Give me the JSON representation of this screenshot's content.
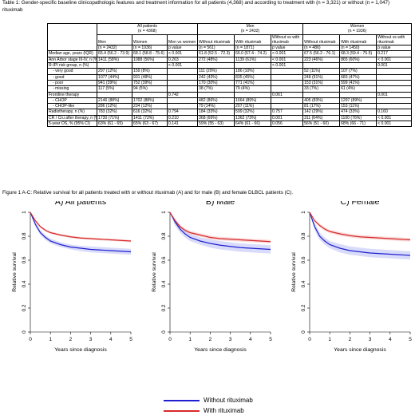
{
  "table_caption": "Table 1: Gender-specific baseline clinicopathologic features and treatment information for all patients (4,368) and according to treatment with (n = 3,321) or without (n = 1,047) rituximab",
  "table": {
    "group_headers": [
      "All patients",
      "Men",
      "Women"
    ],
    "group_counts": [
      "(n = 4368)",
      "(n = 2432)",
      "(n = 1936)"
    ],
    "subheaders": [
      "Men",
      "Women",
      "Men vs women",
      "Without rituximab",
      "With rituximab",
      "Without vs with rituximab",
      "Without rituximab",
      "With rituximab",
      "Without vs with rituximab"
    ],
    "counts": [
      "(n = 2432)",
      "(n = 1936)",
      "p value",
      "(n = 561)",
      "(n = 1871)",
      "p value",
      "(n = 486)",
      "(n = 1450)",
      "p value"
    ],
    "rows": [
      {
        "label": "Median age, years (IQR)",
        "indent": false,
        "cells": [
          "65.4 (56.2 - 73.9)",
          "68.1 (58.8 - 75.6)",
          "< 0.001",
          "61.8 (52.5 - 72.3)",
          "66.0 (57.4 - 74.2)",
          "< 0.001",
          "67.5 (56.2 - 76.1)",
          "68.3 (59.4 - 75.5)",
          "0.217"
        ]
      },
      {
        "label": "Ann Arbor stage III-IV, n (%)",
        "indent": false,
        "cells": [
          "1411 (58%)",
          "1088 (56%)",
          "0.263",
          "272 (48%)",
          "1139 (61%)",
          "< 0.001",
          "223 (46%)",
          "865 (60%)",
          "< 0.001"
        ]
      },
      {
        "label": "R-IPI risk group, n (%)",
        "indent": false,
        "cells": [
          "",
          "",
          "< 0.001",
          "",
          "",
          "< 0.001",
          "",
          "",
          "0.001"
        ]
      },
      {
        "label": "- very good",
        "indent": true,
        "cells": [
          "297 (12%)",
          "159 (8%)",
          "",
          "111 (20%)",
          "186 (10%)",
          "",
          "52 (11%)",
          "107 (7%)",
          ""
        ]
      },
      {
        "label": "- good",
        "indent": true,
        "cells": [
          "1077 (44%)",
          "931 (48%)",
          "",
          "242 (43%)",
          "835 (45%)",
          "",
          "248 (51%)",
          "683 (47%)",
          ""
        ]
      },
      {
        "label": "- poor",
        "indent": true,
        "cells": [
          "941 (39%)",
          "752 (39%)",
          "",
          "170 (30%)",
          "771 (41%)",
          "",
          "153 (31%)",
          "599 (41%)",
          ""
        ]
      },
      {
        "label": "- missing",
        "indent": true,
        "cells": [
          "117 (5%)",
          "94 (5%)",
          "",
          "38 (7%)",
          "79 (4%)",
          "",
          "33 (7%)",
          "61 (4%)",
          ""
        ]
      },
      {
        "label": "Frontline therapy",
        "indent": false,
        "cells": [
          "",
          "",
          "0.742",
          "",
          "",
          "0.061",
          "",
          "",
          "0.001"
        ]
      },
      {
        "label": "- CHOP",
        "indent": true,
        "cells": [
          "2146 (88%)",
          "1702 (88%)",
          "",
          "482 (86%)",
          "1664 (89%)",
          "",
          "405 (83%)",
          "1297 (89%)",
          ""
        ]
      },
      {
        "label": "- CHOP-like",
        "indent": true,
        "cells": [
          "286 (12%)",
          "234 (12%)",
          "",
          "79 (14%)",
          "207 (11%)",
          "",
          "81 (17%)",
          "153 (11%)",
          ""
        ]
      },
      {
        "label": "Radiotherapy, n (%)",
        "indent": false,
        "cells": [
          "783 (32%)",
          "616 (32%)",
          "0.794",
          "184 (33%)",
          "599 (32%)",
          "0.757",
          "142 (29%)",
          "474 (33%)",
          "0.160"
        ]
      },
      {
        "label": "CR / Cru after therapy, n (%)",
        "indent": false,
        "cells": [
          "1730 (71%)",
          "1411 (73%)",
          "0.210",
          "368 (66%)",
          "1362 (73%)",
          "0.001",
          "311 (64%)",
          "1100 (76%)",
          "< 0.001"
        ]
      },
      {
        "label": "5-year OS, % (95% CI)",
        "indent": false,
        "cells": [
          "63% (61 - 65)",
          "65% (63 - 67)",
          "0.141",
          "59% (55 - 63)",
          "64% (61 - 66)",
          "0.056",
          "56% (51 - 60)",
          "68% (66 - 71)",
          "< 0.001"
        ]
      }
    ]
  },
  "figure_caption": "Figure 1 A-C: Relative survival for all patients treated with or without rituximab (A) and for male (B) and female DLBCL patients (C).",
  "legend": {
    "without": {
      "label": "Without rituximab",
      "color": "#1f1fcf"
    },
    "with": {
      "label": "With rituximab",
      "color": "#d62a2a"
    }
  },
  "chart_data": [
    {
      "type": "line",
      "title": "A) All patients",
      "xlabel": "Years since diagnosis",
      "ylabel": "Relative survival",
      "xlim": [
        0,
        5
      ],
      "ylim": [
        0,
        1
      ],
      "xticks": [
        0,
        1,
        2,
        3,
        4,
        5
      ],
      "yticks": [
        0,
        0.2,
        0.4,
        0.6,
        0.8,
        1
      ],
      "x": [
        0,
        0.25,
        0.5,
        0.75,
        1,
        1.5,
        2,
        2.5,
        3,
        3.5,
        4,
        4.5,
        5
      ],
      "series": [
        {
          "name": "Without rituximab",
          "values": [
            1,
            0.9,
            0.83,
            0.79,
            0.76,
            0.73,
            0.71,
            0.7,
            0.69,
            0.685,
            0.68,
            0.675,
            0.67
          ],
          "lower": [
            1,
            0.88,
            0.81,
            0.77,
            0.74,
            0.71,
            0.69,
            0.675,
            0.665,
            0.66,
            0.655,
            0.65,
            0.645
          ],
          "upper": [
            1,
            0.92,
            0.85,
            0.81,
            0.78,
            0.75,
            0.73,
            0.72,
            0.715,
            0.71,
            0.705,
            0.7,
            0.695
          ]
        },
        {
          "name": "With rituximab",
          "values": [
            1,
            0.93,
            0.88,
            0.85,
            0.83,
            0.81,
            0.795,
            0.785,
            0.78,
            0.775,
            0.77,
            0.765,
            0.76
          ],
          "lower": [
            1,
            0.92,
            0.87,
            0.84,
            0.82,
            0.8,
            0.785,
            0.775,
            0.77,
            0.765,
            0.76,
            0.755,
            0.75
          ],
          "upper": [
            1,
            0.94,
            0.89,
            0.86,
            0.84,
            0.82,
            0.805,
            0.795,
            0.79,
            0.785,
            0.78,
            0.775,
            0.77
          ]
        }
      ]
    },
    {
      "type": "line",
      "title": "B) Male",
      "xlabel": "Years since diagnosis",
      "ylabel": "Relative survival",
      "xlim": [
        0,
        5
      ],
      "ylim": [
        0,
        1
      ],
      "xticks": [
        0,
        1,
        2,
        3,
        4,
        5
      ],
      "yticks": [
        0,
        0.2,
        0.4,
        0.6,
        0.8,
        1
      ],
      "x": [
        0,
        0.25,
        0.5,
        0.75,
        1,
        1.5,
        2,
        2.5,
        3,
        3.5,
        4,
        4.5,
        5
      ],
      "series": [
        {
          "name": "Without rituximab",
          "values": [
            1,
            0.92,
            0.86,
            0.82,
            0.79,
            0.76,
            0.74,
            0.725,
            0.715,
            0.705,
            0.7,
            0.695,
            0.69
          ],
          "lower": [
            1,
            0.89,
            0.83,
            0.79,
            0.76,
            0.73,
            0.705,
            0.69,
            0.68,
            0.67,
            0.665,
            0.66,
            0.655
          ],
          "upper": [
            1,
            0.95,
            0.89,
            0.85,
            0.82,
            0.79,
            0.775,
            0.76,
            0.75,
            0.74,
            0.735,
            0.73,
            0.725
          ]
        },
        {
          "name": "With rituximab",
          "values": [
            1,
            0.93,
            0.88,
            0.85,
            0.83,
            0.81,
            0.79,
            0.78,
            0.775,
            0.77,
            0.765,
            0.76,
            0.755
          ],
          "lower": [
            1,
            0.92,
            0.865,
            0.835,
            0.815,
            0.795,
            0.775,
            0.765,
            0.76,
            0.755,
            0.75,
            0.745,
            0.74
          ],
          "upper": [
            1,
            0.94,
            0.895,
            0.865,
            0.845,
            0.825,
            0.805,
            0.795,
            0.79,
            0.785,
            0.78,
            0.775,
            0.77
          ]
        }
      ]
    },
    {
      "type": "line",
      "title": "C) Female",
      "xlabel": "Years since diagnosis",
      "ylabel": "Relative survival",
      "xlim": [
        0,
        5
      ],
      "ylim": [
        0,
        1
      ],
      "xticks": [
        0,
        1,
        2,
        3,
        4,
        5
      ],
      "yticks": [
        0,
        0.2,
        0.4,
        0.6,
        0.8,
        1
      ],
      "x": [
        0,
        0.25,
        0.5,
        0.75,
        1,
        1.5,
        2,
        2.5,
        3,
        3.5,
        4,
        4.5,
        5
      ],
      "series": [
        {
          "name": "Without rituximab",
          "values": [
            1,
            0.88,
            0.8,
            0.76,
            0.73,
            0.7,
            0.68,
            0.67,
            0.66,
            0.655,
            0.65,
            0.645,
            0.64
          ],
          "lower": [
            1,
            0.85,
            0.77,
            0.73,
            0.7,
            0.665,
            0.645,
            0.635,
            0.625,
            0.62,
            0.615,
            0.61,
            0.605
          ],
          "upper": [
            1,
            0.91,
            0.83,
            0.79,
            0.76,
            0.735,
            0.715,
            0.705,
            0.695,
            0.69,
            0.685,
            0.68,
            0.675
          ]
        },
        {
          "name": "With rituximab",
          "values": [
            1,
            0.93,
            0.89,
            0.86,
            0.84,
            0.82,
            0.805,
            0.795,
            0.79,
            0.785,
            0.78,
            0.775,
            0.77
          ],
          "lower": [
            1,
            0.92,
            0.875,
            0.845,
            0.825,
            0.805,
            0.79,
            0.78,
            0.775,
            0.77,
            0.765,
            0.76,
            0.755
          ],
          "upper": [
            1,
            0.94,
            0.905,
            0.875,
            0.855,
            0.835,
            0.82,
            0.81,
            0.805,
            0.8,
            0.795,
            0.79,
            0.785
          ]
        }
      ]
    }
  ]
}
